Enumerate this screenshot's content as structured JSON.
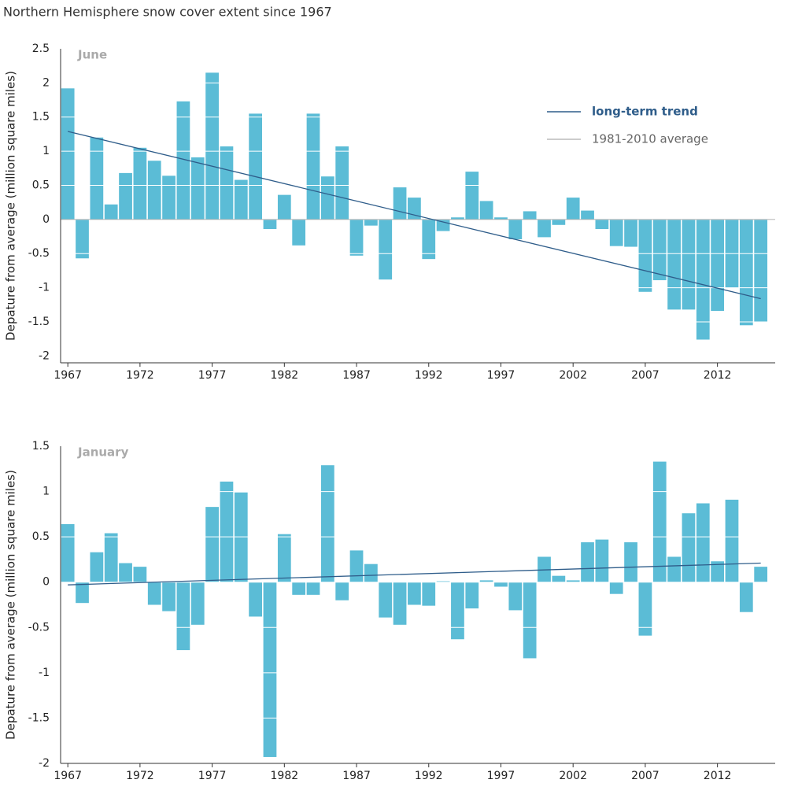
{
  "title": "Northern Hemisphere snow cover extent since 1967",
  "chart_data": [
    {
      "type": "bar",
      "title": "June",
      "y_label": "Depature from average (million square miles)",
      "x": [
        1967,
        1968,
        1969,
        1970,
        1971,
        1972,
        1973,
        1974,
        1975,
        1976,
        1977,
        1978,
        1979,
        1980,
        1981,
        1982,
        1983,
        1984,
        1985,
        1986,
        1987,
        1988,
        1989,
        1990,
        1991,
        1992,
        1993,
        1994,
        1995,
        1996,
        1997,
        1998,
        1999,
        2000,
        2001,
        2002,
        2003,
        2004,
        2005,
        2006,
        2007,
        2008,
        2009,
        2010,
        2011,
        2012,
        2013,
        2014,
        2015
      ],
      "values": [
        1.92,
        -0.57,
        1.2,
        0.22,
        0.68,
        1.05,
        0.86,
        0.64,
        1.73,
        0.91,
        2.15,
        1.07,
        0.58,
        1.55,
        -0.14,
        0.36,
        -0.38,
        1.55,
        0.63,
        1.07,
        -0.53,
        -0.09,
        -0.88,
        0.47,
        0.32,
        -0.58,
        -0.17,
        0.03,
        0.7,
        0.27,
        0.03,
        -0.29,
        0.12,
        -0.26,
        -0.08,
        0.32,
        0.13,
        -0.14,
        -0.39,
        -0.4,
        -1.06,
        -0.89,
        -1.32,
        -1.32,
        -1.76,
        -1.34,
        -1.0,
        -1.55,
        -1.5
      ],
      "color": "#5bbcd6",
      "trend": {
        "name": "long-term trend",
        "x": [
          1967,
          2015
        ],
        "values": [
          1.29,
          -1.16
        ],
        "color": "#2f5d8a"
      },
      "average": {
        "name": "1981-2010 average",
        "value": 0,
        "color": "#999999"
      },
      "legend": true,
      "xlim": [
        1966.5,
        2016
      ],
      "xticks": [
        1967,
        1972,
        1977,
        1982,
        1987,
        1992,
        1997,
        2002,
        2007,
        2012
      ],
      "ylim": [
        -2.1,
        2.5
      ],
      "yticks": [
        2.5,
        2,
        1.5,
        1,
        0.5,
        0,
        -0.5,
        -1,
        -1.5,
        -2
      ],
      "grid": true
    },
    {
      "type": "bar",
      "title": "January",
      "y_label": "Depature from average (million square miles)",
      "x": [
        1967,
        1968,
        1969,
        1970,
        1971,
        1972,
        1973,
        1974,
        1975,
        1976,
        1977,
        1978,
        1979,
        1980,
        1981,
        1982,
        1983,
        1984,
        1985,
        1986,
        1987,
        1988,
        1989,
        1990,
        1991,
        1992,
        1993,
        1994,
        1995,
        1996,
        1997,
        1998,
        1999,
        2000,
        2001,
        2002,
        2003,
        2004,
        2005,
        2006,
        2007,
        2008,
        2009,
        2010,
        2011,
        2012,
        2013,
        2014,
        2015
      ],
      "values": [
        0.64,
        -0.23,
        0.33,
        0.54,
        0.21,
        0.17,
        -0.25,
        -0.32,
        -0.75,
        -0.47,
        0.83,
        1.11,
        0.99,
        -0.38,
        -1.93,
        0.53,
        -0.14,
        -0.14,
        1.29,
        -0.2,
        0.35,
        0.2,
        -0.39,
        -0.47,
        -0.25,
        -0.26,
        0.01,
        -0.63,
        -0.29,
        0.02,
        -0.05,
        -0.31,
        -0.84,
        0.28,
        0.07,
        0.02,
        0.44,
        0.47,
        -0.13,
        0.44,
        -0.59,
        1.33,
        0.28,
        0.76,
        0.87,
        0.23,
        0.91,
        -0.33,
        0.17
      ],
      "color": "#5bbcd6",
      "trend": {
        "x": [
          1967,
          2015
        ],
        "values": [
          -0.03,
          0.21
        ],
        "color": "#2f5d8a"
      },
      "legend": false,
      "xlim": [
        1966.5,
        2016
      ],
      "xticks": [
        1967,
        1972,
        1977,
        1982,
        1987,
        1992,
        1997,
        2002,
        2007,
        2012
      ],
      "ylim": [
        -2,
        1.5
      ],
      "yticks": [
        1.5,
        1,
        0.5,
        0,
        -0.5,
        -1,
        -1.5,
        -2
      ],
      "grid": true
    }
  ]
}
